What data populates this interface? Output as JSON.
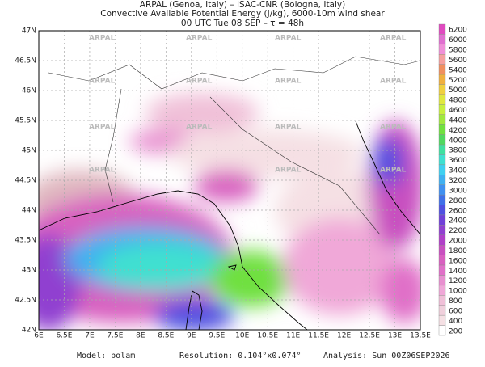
{
  "header": {
    "line1": "ARPAL (Genoa, Italy)  –  ISAC-CNR (Bologna, Italy)",
    "line2": "Convective Available Potential Energy (J/kg), 6000-10m wind shear",
    "line3": "00 UTC Tue 08 SEP  –  τ = 48h"
  },
  "watermark": "ARPAL",
  "map": {
    "lat_labels": [
      "47N",
      "46.5N",
      "46N",
      "45.5N",
      "45N",
      "44.5N",
      "44N",
      "43.5N",
      "43N",
      "42.5N",
      "42N"
    ],
    "lon_labels": [
      "6E",
      "6.5E",
      "7E",
      "7.5E",
      "8E",
      "8.5E",
      "9E",
      "9.5E",
      "10E",
      "10.5E",
      "11E",
      "11.5E",
      "12E",
      "12.5E",
      "13E",
      "13.5E"
    ]
  },
  "colorbar": {
    "labels": [
      6200,
      6000,
      5800,
      5600,
      5400,
      5200,
      5000,
      4800,
      4600,
      4400,
      4200,
      4000,
      3800,
      3600,
      3400,
      3200,
      3000,
      2800,
      2600,
      2400,
      2200,
      2000,
      1800,
      1600,
      1400,
      1200,
      1000,
      800,
      600,
      400,
      200
    ],
    "colors": [
      "#e04ac0",
      "#e070d0",
      "#f090d8",
      "#f5a0a0",
      "#f09060",
      "#f0b040",
      "#f0d040",
      "#e0e840",
      "#c8f040",
      "#a0e840",
      "#70e040",
      "#50d860",
      "#40e0a0",
      "#40e0d0",
      "#40d0f0",
      "#40b0f0",
      "#4090f0",
      "#4070e8",
      "#5050e0",
      "#7040d8",
      "#9040d0",
      "#b040c8",
      "#c850c0",
      "#d860c0",
      "#e070c8",
      "#e890d0",
      "#f0a8d8",
      "#f0c0d8",
      "#f0d0dc",
      "#f5e0e4",
      "#ffffff"
    ]
  },
  "footer": {
    "model": "Model: bolam",
    "resolution": "Resolution: 0.104°x0.074°",
    "analysis": "Analysis: Sun 00Z06SEP2026"
  }
}
